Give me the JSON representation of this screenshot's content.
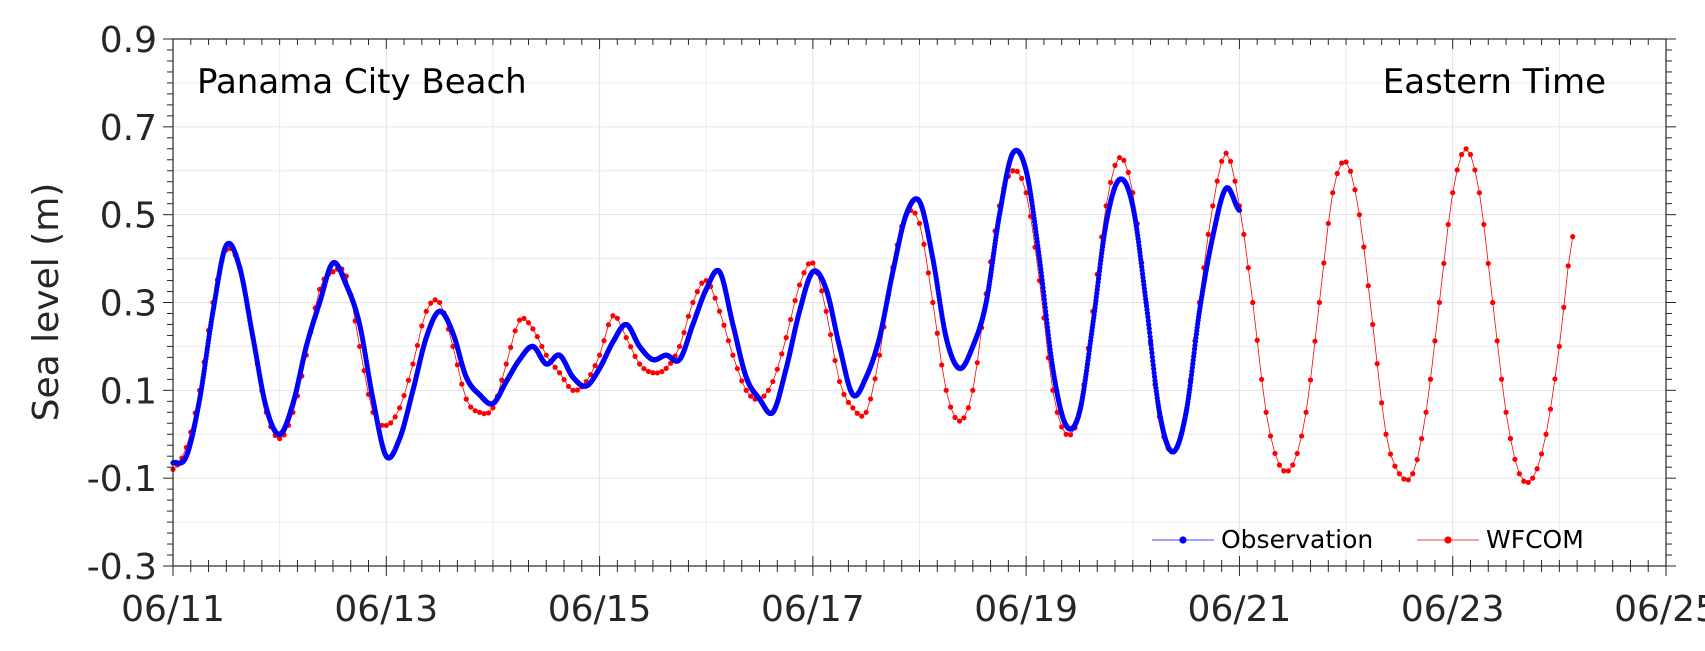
{
  "chart_data": {
    "type": "line",
    "ylabel": "Sea level (m)",
    "ylim": [
      -0.3,
      0.9
    ],
    "y_ticks": [
      "-0.3",
      "-0.1",
      "0.1",
      "0.3",
      "0.5",
      "0.7",
      "0.9"
    ],
    "xlim": [
      "06/11",
      "06/25"
    ],
    "x_ticks": [
      "06/11",
      "06/13",
      "06/15",
      "06/17",
      "06/19",
      "06/21",
      "06/23",
      "06/25"
    ],
    "grid": true,
    "legend_position": "bottom-right",
    "annotations": {
      "location": "Panama City Beach",
      "timezone": "Eastern Time"
    },
    "series": [
      {
        "name": "Observation",
        "color": "#0000ff",
        "marker": "dot",
        "points": [
          [
            "06/11 00:00",
            -0.065
          ],
          [
            "06/11 03:00",
            -0.05
          ],
          [
            "06/11 06:00",
            0.08
          ],
          [
            "06/11 09:00",
            0.28
          ],
          [
            "06/11 12:00",
            0.43
          ],
          [
            "06/11 15:00",
            0.38
          ],
          [
            "06/11 18:00",
            0.22
          ],
          [
            "06/11 21:00",
            0.06
          ],
          [
            "06/12 00:00",
            0.0
          ],
          [
            "06/12 03:00",
            0.07
          ],
          [
            "06/12 06:00",
            0.2
          ],
          [
            "06/12 09:00",
            0.3
          ],
          [
            "06/12 12:00",
            0.39
          ],
          [
            "06/12 15:00",
            0.34
          ],
          [
            "06/12 18:00",
            0.25
          ],
          [
            "06/12 21:00",
            0.08
          ],
          [
            "06/13 00:00",
            -0.05
          ],
          [
            "06/13 03:00",
            -0.01
          ],
          [
            "06/13 06:00",
            0.1
          ],
          [
            "06/13 09:00",
            0.22
          ],
          [
            "06/13 12:00",
            0.28
          ],
          [
            "06/13 15:00",
            0.23
          ],
          [
            "06/13 18:00",
            0.13
          ],
          [
            "06/13 21:00",
            0.09
          ],
          [
            "06/14 00:00",
            0.07
          ],
          [
            "06/14 03:00",
            0.12
          ],
          [
            "06/14 06:00",
            0.17
          ],
          [
            "06/14 09:00",
            0.2
          ],
          [
            "06/14 12:00",
            0.16
          ],
          [
            "06/14 15:00",
            0.18
          ],
          [
            "06/14 18:00",
            0.13
          ],
          [
            "06/14 21:00",
            0.11
          ],
          [
            "06/15 00:00",
            0.15
          ],
          [
            "06/15 03:00",
            0.21
          ],
          [
            "06/15 06:00",
            0.25
          ],
          [
            "06/15 09:00",
            0.2
          ],
          [
            "06/15 12:00",
            0.17
          ],
          [
            "06/15 15:00",
            0.18
          ],
          [
            "06/15 18:00",
            0.17
          ],
          [
            "06/15 21:00",
            0.25
          ],
          [
            "06/16 00:00",
            0.33
          ],
          [
            "06/16 03:00",
            0.37
          ],
          [
            "06/16 06:00",
            0.25
          ],
          [
            "06/16 09:00",
            0.13
          ],
          [
            "06/16 12:00",
            0.08
          ],
          [
            "06/16 15:00",
            0.05
          ],
          [
            "06/16 18:00",
            0.15
          ],
          [
            "06/16 21:00",
            0.28
          ],
          [
            "06/17 00:00",
            0.37
          ],
          [
            "06/17 03:00",
            0.33
          ],
          [
            "06/17 06:00",
            0.2
          ],
          [
            "06/17 09:00",
            0.09
          ],
          [
            "06/17 12:00",
            0.13
          ],
          [
            "06/17 15:00",
            0.22
          ],
          [
            "06/17 18:00",
            0.37
          ],
          [
            "06/17 21:00",
            0.5
          ],
          [
            "06/18 00:00",
            0.53
          ],
          [
            "06/18 03:00",
            0.4
          ],
          [
            "06/18 06:00",
            0.22
          ],
          [
            "06/18 09:00",
            0.15
          ],
          [
            "06/18 12:00",
            0.2
          ],
          [
            "06/18 15:00",
            0.3
          ],
          [
            "06/18 18:00",
            0.5
          ],
          [
            "06/18 21:00",
            0.64
          ],
          [
            "06/19 00:00",
            0.6
          ],
          [
            "06/19 03:00",
            0.4
          ],
          [
            "06/19 06:00",
            0.15
          ],
          [
            "06/19 09:00",
            0.02
          ],
          [
            "06/19 12:00",
            0.05
          ],
          [
            "06/19 15:00",
            0.25
          ],
          [
            "06/19 18:00",
            0.48
          ],
          [
            "06/19 21:00",
            0.58
          ],
          [
            "06/20 00:00",
            0.52
          ],
          [
            "06/20 03:00",
            0.3
          ],
          [
            "06/20 06:00",
            0.05
          ],
          [
            "06/20 09:00",
            -0.04
          ],
          [
            "06/20 12:00",
            0.05
          ],
          [
            "06/20 15:00",
            0.28
          ],
          [
            "06/20 18:00",
            0.45
          ],
          [
            "06/20 21:00",
            0.56
          ],
          [
            "06/21 00:00",
            0.51
          ]
        ]
      },
      {
        "name": "WFCOM",
        "color": "#ff0000",
        "marker": "dot",
        "points": [
          [
            "06/11 00:00",
            -0.08
          ],
          [
            "06/11 03:00",
            -0.03
          ],
          [
            "06/11 06:00",
            0.1
          ],
          [
            "06/11 09:00",
            0.3
          ],
          [
            "06/11 12:00",
            0.42
          ],
          [
            "06/11 15:00",
            0.38
          ],
          [
            "06/11 18:00",
            0.22
          ],
          [
            "06/11 21:00",
            0.05
          ],
          [
            "06/12 00:00",
            -0.01
          ],
          [
            "06/12 03:00",
            0.05
          ],
          [
            "06/12 06:00",
            0.18
          ],
          [
            "06/12 09:00",
            0.33
          ],
          [
            "06/12 12:00",
            0.37
          ],
          [
            "06/12 15:00",
            0.36
          ],
          [
            "06/12 18:00",
            0.2
          ],
          [
            "06/12 21:00",
            0.05
          ],
          [
            "06/13 00:00",
            0.02
          ],
          [
            "06/13 03:00",
            0.06
          ],
          [
            "06/13 06:00",
            0.16
          ],
          [
            "06/13 09:00",
            0.28
          ],
          [
            "06/13 12:00",
            0.3
          ],
          [
            "06/13 15:00",
            0.2
          ],
          [
            "06/13 18:00",
            0.08
          ],
          [
            "06/13 21:00",
            0.05
          ],
          [
            "06/14 00:00",
            0.06
          ],
          [
            "06/14 03:00",
            0.16
          ],
          [
            "06/14 06:00",
            0.26
          ],
          [
            "06/14 09:00",
            0.24
          ],
          [
            "06/14 12:00",
            0.18
          ],
          [
            "06/14 15:00",
            0.14
          ],
          [
            "06/14 18:00",
            0.1
          ],
          [
            "06/14 21:00",
            0.12
          ],
          [
            "06/15 00:00",
            0.18
          ],
          [
            "06/15 03:00",
            0.27
          ],
          [
            "06/15 06:00",
            0.22
          ],
          [
            "06/15 09:00",
            0.16
          ],
          [
            "06/15 12:00",
            0.14
          ],
          [
            "06/15 15:00",
            0.15
          ],
          [
            "06/15 18:00",
            0.2
          ],
          [
            "06/15 21:00",
            0.3
          ],
          [
            "06/16 00:00",
            0.35
          ],
          [
            "06/16 03:00",
            0.28
          ],
          [
            "06/16 06:00",
            0.18
          ],
          [
            "06/16 09:00",
            0.1
          ],
          [
            "06/16 12:00",
            0.08
          ],
          [
            "06/16 15:00",
            0.12
          ],
          [
            "06/16 18:00",
            0.22
          ],
          [
            "06/16 21:00",
            0.34
          ],
          [
            "06/17 00:00",
            0.39
          ],
          [
            "06/17 03:00",
            0.28
          ],
          [
            "06/17 06:00",
            0.12
          ],
          [
            "06/17 09:00",
            0.06
          ],
          [
            "06/17 12:00",
            0.05
          ],
          [
            "06/17 15:00",
            0.18
          ],
          [
            "06/17 18:00",
            0.38
          ],
          [
            "06/17 21:00",
            0.5
          ],
          [
            "06/18 00:00",
            0.48
          ],
          [
            "06/18 03:00",
            0.3
          ],
          [
            "06/18 06:00",
            0.1
          ],
          [
            "06/18 09:00",
            0.03
          ],
          [
            "06/18 12:00",
            0.1
          ],
          [
            "06/18 15:00",
            0.32
          ],
          [
            "06/18 18:00",
            0.52
          ],
          [
            "06/18 21:00",
            0.6
          ],
          [
            "06/19 00:00",
            0.55
          ],
          [
            "06/19 03:00",
            0.35
          ],
          [
            "06/19 06:00",
            0.1
          ],
          [
            "06/19 09:00",
            0.0
          ],
          [
            "06/19 12:00",
            0.05
          ],
          [
            "06/19 15:00",
            0.28
          ],
          [
            "06/19 18:00",
            0.52
          ],
          [
            "06/19 21:00",
            0.63
          ],
          [
            "06/20 00:00",
            0.55
          ],
          [
            "06/20 03:00",
            0.3
          ],
          [
            "06/20 06:00",
            0.04
          ],
          [
            "06/20 09:00",
            -0.04
          ],
          [
            "06/20 12:00",
            0.05
          ],
          [
            "06/20 15:00",
            0.3
          ],
          [
            "06/20 18:00",
            0.52
          ],
          [
            "06/20 21:00",
            0.64
          ],
          [
            "06/21 00:00",
            0.52
          ],
          [
            "06/21 03:00",
            0.3
          ],
          [
            "06/21 06:00",
            0.05
          ],
          [
            "06/21 09:00",
            -0.07
          ],
          [
            "06/21 12:00",
            -0.07
          ],
          [
            "06/21 15:00",
            0.05
          ],
          [
            "06/21 18:00",
            0.3
          ],
          [
            "06/21 21:00",
            0.55
          ],
          [
            "06/22 00:00",
            0.62
          ],
          [
            "06/22 03:00",
            0.5
          ],
          [
            "06/22 06:00",
            0.25
          ],
          [
            "06/22 09:00",
            0.0
          ],
          [
            "06/22 12:00",
            -0.09
          ],
          [
            "06/22 15:00",
            -0.09
          ],
          [
            "06/22 18:00",
            0.05
          ],
          [
            "06/22 21:00",
            0.3
          ],
          [
            "06/23 00:00",
            0.55
          ],
          [
            "06/23 03:00",
            0.65
          ],
          [
            "06/23 06:00",
            0.55
          ],
          [
            "06/23 09:00",
            0.3
          ],
          [
            "06/23 12:00",
            0.05
          ],
          [
            "06/23 15:00",
            -0.09
          ],
          [
            "06/23 18:00",
            -0.1
          ],
          [
            "06/23 21:00",
            0.0
          ],
          [
            "06/24 00:00",
            0.2
          ],
          [
            "06/24 03:00",
            0.45
          ]
        ]
      }
    ]
  }
}
